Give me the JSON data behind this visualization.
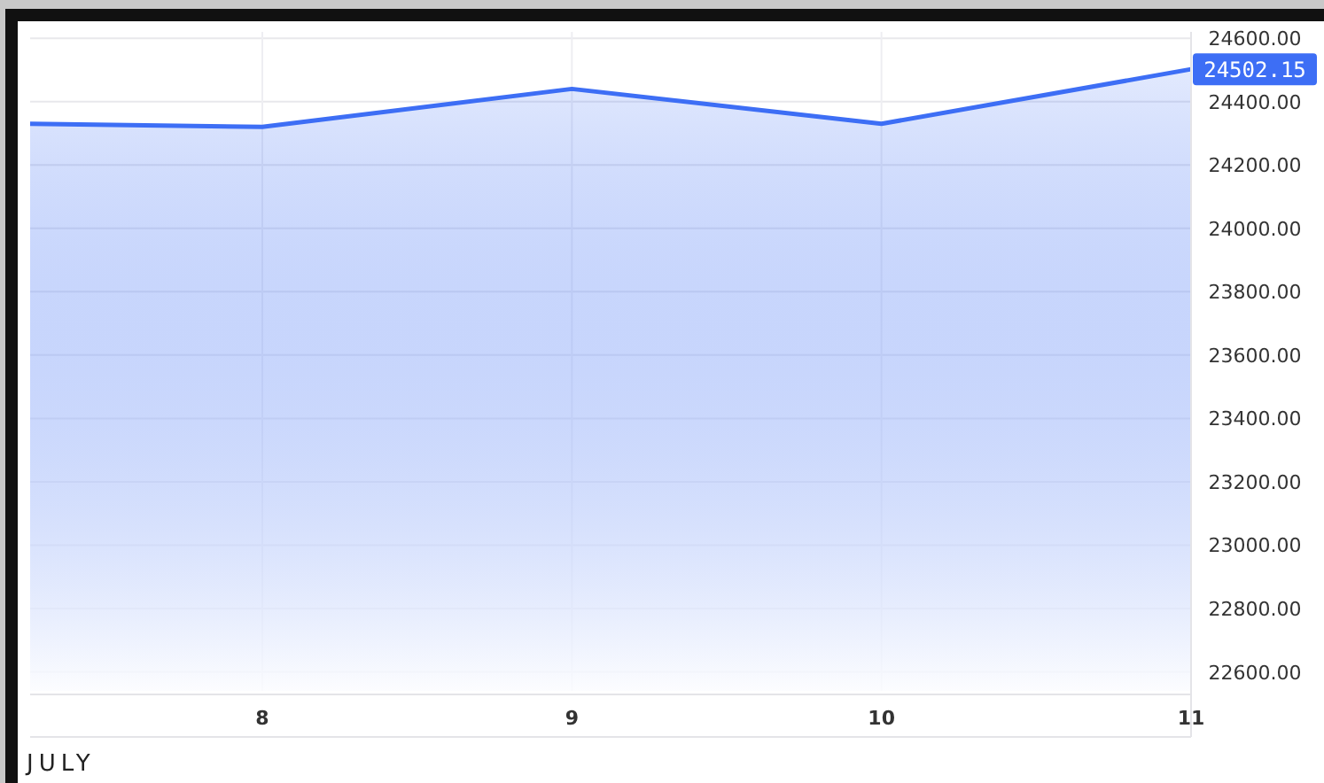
{
  "chart_data": {
    "type": "area",
    "xlabel": "JULY",
    "x": [
      7.25,
      8,
      9,
      10,
      11
    ],
    "series": [
      {
        "color": "#3d6ef5",
        "values": [
          24330,
          24320,
          24440,
          24330,
          24502.15
        ]
      }
    ],
    "xlim": [
      7.25,
      11
    ],
    "xticks": [
      8,
      9,
      10,
      11
    ],
    "ylim": [
      22540,
      24620
    ],
    "yticks": [
      {
        "value": 22600,
        "label": "22600.00"
      },
      {
        "value": 22800,
        "label": "22800.00"
      },
      {
        "value": 23000,
        "label": "23000.00"
      },
      {
        "value": 23200,
        "label": "23200.00"
      },
      {
        "value": 23400,
        "label": "23400.00"
      },
      {
        "value": 23600,
        "label": "23600.00"
      },
      {
        "value": 23800,
        "label": "23800.00"
      },
      {
        "value": 24000,
        "label": "24000.00"
      },
      {
        "value": 24200,
        "label": "24200.00"
      },
      {
        "value": 24400,
        "label": "24400.00"
      },
      {
        "value": 24600,
        "label": "24600.00"
      }
    ],
    "grid": true,
    "annotations": [
      {
        "text": "24502.15",
        "x": 11,
        "y": 24502.15
      }
    ]
  }
}
